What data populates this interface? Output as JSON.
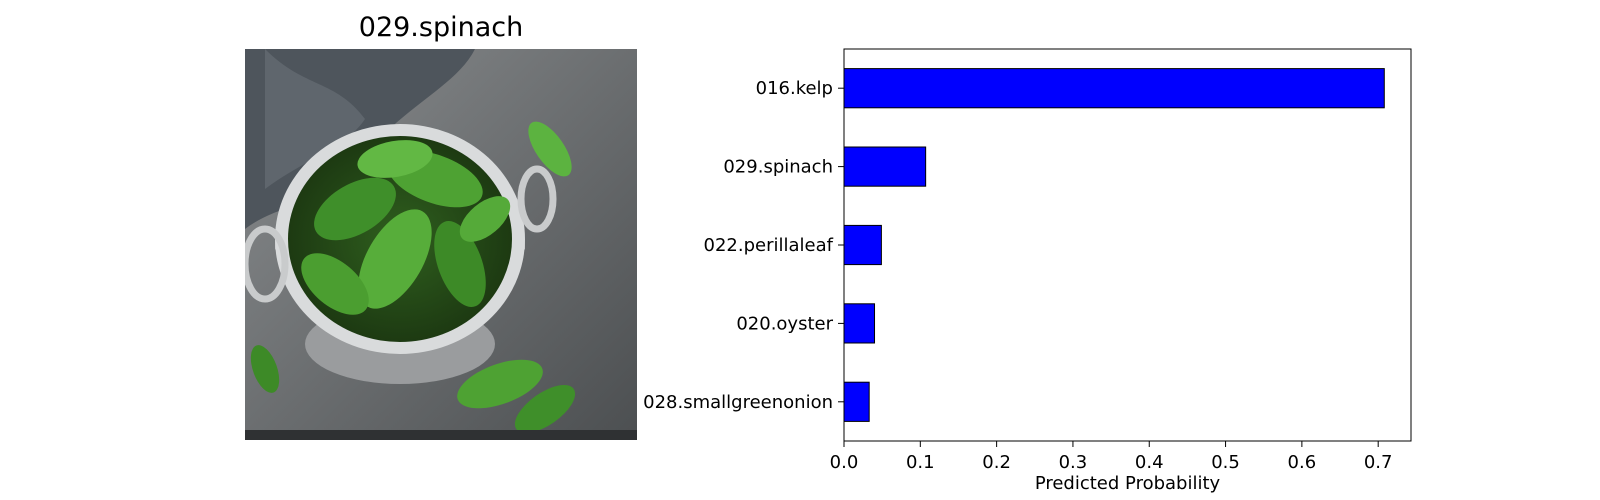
{
  "image_panel": {
    "title": "029.spinach",
    "photo_subject": "spinach leaves in a metal colander"
  },
  "colors": {
    "bar_fill": "#0000ff",
    "bar_edge": "#000000",
    "axis": "#000000"
  },
  "chart_data": {
    "type": "bar",
    "orientation": "horizontal",
    "title": "",
    "xlabel": "Predicted Probability",
    "ylabel": "",
    "categories": [
      "016.kelp",
      "029.spinach",
      "022.perillaleaf",
      "020.oyster",
      "028.smallgreenonion"
    ],
    "values": [
      0.708,
      0.107,
      0.049,
      0.04,
      0.033
    ],
    "xlim": [
      0,
      0.743
    ],
    "xticks": [
      "0.0",
      "0.1",
      "0.2",
      "0.3",
      "0.4",
      "0.5",
      "0.6",
      "0.7"
    ],
    "grid": false
  }
}
